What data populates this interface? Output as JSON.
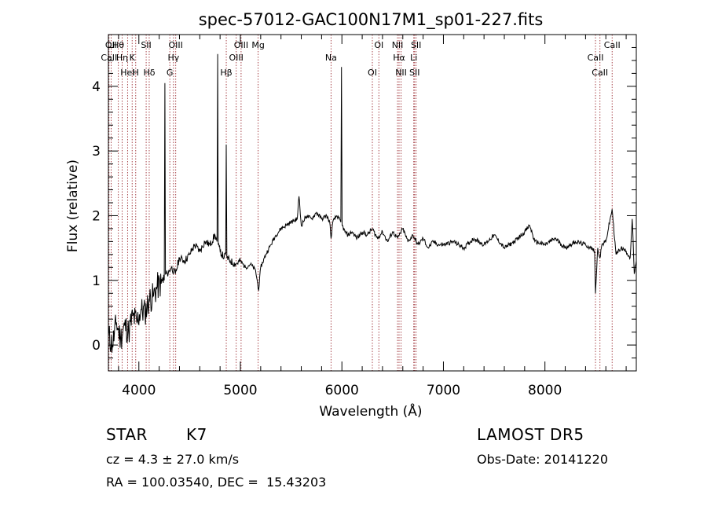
{
  "chart_data": {
    "type": "line",
    "title": "spec-57012-GAC100N17M1_sp01-227.fits",
    "xlabel": "Wavelength (Å)",
    "ylabel": "Flux (relative)",
    "xlim": [
      3700,
      8900
    ],
    "ylim": [
      -0.4,
      4.8
    ],
    "xticks": [
      4000,
      5000,
      6000,
      7000,
      8000
    ],
    "yticks": [
      0,
      1,
      2,
      3,
      4
    ],
    "series": [
      {
        "color": "#000000",
        "x": [
          3700,
          3740,
          3780,
          3820,
          3860,
          3900,
          3940,
          3980,
          4020,
          4060,
          4100,
          4140,
          4180,
          4220,
          4250,
          4256,
          4262,
          4280,
          4320,
          4360,
          4400,
          4450,
          4500,
          4550,
          4600,
          4650,
          4700,
          4750,
          4770,
          4776,
          4782,
          4800,
          4840,
          4855,
          4861,
          4867,
          4900,
          4950,
          5000,
          5050,
          5100,
          5150,
          5180,
          5200,
          5250,
          5300,
          5350,
          5400,
          5450,
          5500,
          5560,
          5577,
          5600,
          5650,
          5700,
          5750,
          5800,
          5850,
          5880,
          5893,
          5910,
          5950,
          5990,
          5996,
          6002,
          6030,
          6060,
          6100,
          6150,
          6200,
          6250,
          6300,
          6350,
          6400,
          6450,
          6500,
          6550,
          6600,
          6650,
          6700,
          6750,
          6800,
          6850,
          6900,
          6950,
          7000,
          7100,
          7200,
          7300,
          7400,
          7500,
          7600,
          7700,
          7800,
          7850,
          7900,
          8000,
          8100,
          8200,
          8300,
          8400,
          8450,
          8490,
          8498,
          8520,
          8542,
          8560,
          8600,
          8662,
          8700,
          8750,
          8800,
          8840,
          8860,
          8880,
          8900
        ],
        "y": [
          0.15,
          0.0,
          0.35,
          0.1,
          0.3,
          0.2,
          0.45,
          0.35,
          0.55,
          0.5,
          0.7,
          0.75,
          0.9,
          0.95,
          1.0,
          4.05,
          1.1,
          1.1,
          1.2,
          1.1,
          1.35,
          1.3,
          1.4,
          1.55,
          1.45,
          1.6,
          1.55,
          1.7,
          1.6,
          4.5,
          1.55,
          1.45,
          1.35,
          1.4,
          3.1,
          1.35,
          1.3,
          1.25,
          1.3,
          1.2,
          1.25,
          1.15,
          0.85,
          1.2,
          1.4,
          1.55,
          1.7,
          1.8,
          1.85,
          1.9,
          1.95,
          2.3,
          1.85,
          2.0,
          1.95,
          2.05,
          1.95,
          2.0,
          1.9,
          1.65,
          1.9,
          2.0,
          1.9,
          4.3,
          1.85,
          1.75,
          1.7,
          1.75,
          1.65,
          1.75,
          1.7,
          1.8,
          1.65,
          1.75,
          1.6,
          1.75,
          1.65,
          1.8,
          1.6,
          1.7,
          1.55,
          1.65,
          1.5,
          1.6,
          1.55,
          1.55,
          1.6,
          1.5,
          1.65,
          1.55,
          1.7,
          1.5,
          1.6,
          1.75,
          1.85,
          1.6,
          1.55,
          1.65,
          1.5,
          1.6,
          1.55,
          1.5,
          1.45,
          0.8,
          1.5,
          1.35,
          1.55,
          1.6,
          2.1,
          1.4,
          1.5,
          1.45,
          1.35,
          1.95,
          1.1,
          1.3
        ]
      }
    ],
    "lines": [
      {
        "label": "Hθ",
        "x": 3798
      },
      {
        "label": "K",
        "x": 3934
      },
      {
        "label": "Hδ",
        "x": 4102
      },
      {
        "label": "OII",
        "x": 3727
      },
      {
        "label": "Hη",
        "x": 3835
      },
      {
        "label": "HeI",
        "x": 3889
      },
      {
        "label": "SII",
        "x": 4072
      },
      {
        "label": "CaII",
        "x": 3706
      },
      {
        "label": "H",
        "x": 3969
      },
      {
        "label": "OIII",
        "x": 4363
      },
      {
        "label": "Hγ",
        "x": 4341
      },
      {
        "label": "G",
        "x": 4305
      },
      {
        "label": "OIII",
        "x": 5007
      },
      {
        "label": "OIII",
        "x": 4959
      },
      {
        "label": "Hβ",
        "x": 4861
      },
      {
        "label": "Mg",
        "x": 5175
      },
      {
        "label": "Na",
        "x": 5893
      },
      {
        "label": "OI",
        "x": 6300
      },
      {
        "label": "OI",
        "x": 6364
      },
      {
        "label": "Hα",
        "x": 6563
      },
      {
        "label": "SII",
        "x": 6716
      },
      {
        "label": "NII",
        "x": 6548
      },
      {
        "label": "Li",
        "x": 6708
      },
      {
        "label": "NII",
        "x": 6583
      },
      {
        "label": "SII",
        "x": 6731
      },
      {
        "label": "CaII",
        "x": 8498
      },
      {
        "label": "CaII",
        "x": 8542
      },
      {
        "label": "CaII",
        "x": 8662
      }
    ]
  },
  "info": {
    "class_label": "STAR",
    "subclass": "K7",
    "survey": "LAMOST DR5",
    "cz": "cz = 4.3 ± 27.0 km/s",
    "obs_date": "Obs-Date: 20141220",
    "coords": "RA = 100.03540, DEC =  15.43203"
  },
  "colors": {
    "axes": "#000000",
    "spectrum": "#000000",
    "line_marker": "#a0343a"
  }
}
